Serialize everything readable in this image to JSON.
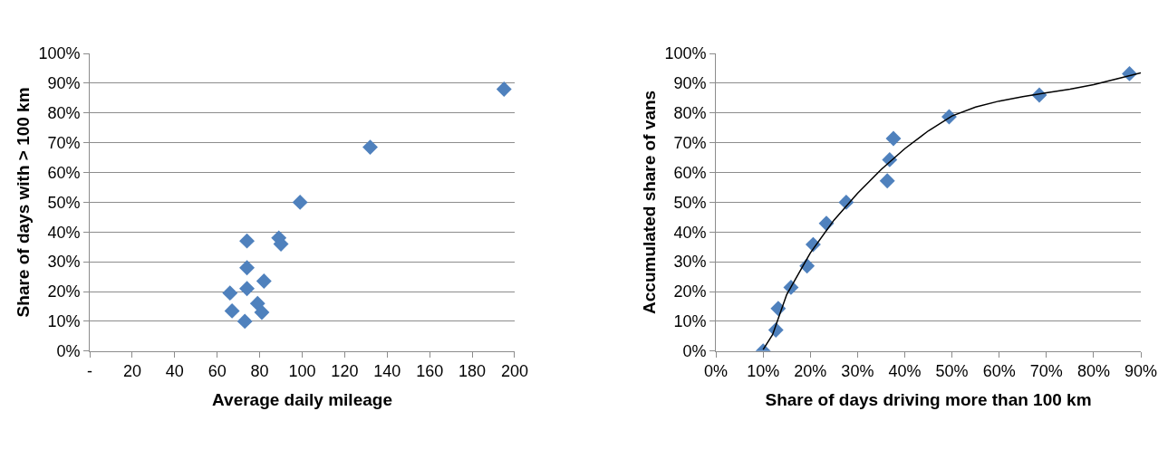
{
  "chart_data": [
    {
      "type": "scatter",
      "xlabel": "Average daily mileage",
      "ylabel": "Share of days with > 100 km",
      "marker": "diamond",
      "grid": "y",
      "xlim": [
        0,
        200
      ],
      "xticks": [
        {
          "value": 0,
          "label": "-"
        },
        20,
        40,
        60,
        80,
        100,
        120,
        140,
        160,
        180,
        200
      ],
      "ylim": [
        0,
        100
      ],
      "yticks": [
        {
          "value": 0,
          "label": "0%"
        },
        {
          "value": 10,
          "label": "10%"
        },
        {
          "value": 20,
          "label": "20%"
        },
        {
          "value": 30,
          "label": "30%"
        },
        {
          "value": 40,
          "label": "40%"
        },
        {
          "value": 50,
          "label": "50%"
        },
        {
          "value": 60,
          "label": "60%"
        },
        {
          "value": 70,
          "label": "70%"
        },
        {
          "value": 80,
          "label": "80%"
        },
        {
          "value": 90,
          "label": "90%"
        },
        {
          "value": 100,
          "label": "100%"
        }
      ],
      "series": [
        {
          "color": "#4f81bd",
          "x": [
            74,
            74,
            82,
            66,
            74,
            79,
            67,
            81,
            73,
            89,
            90,
            99,
            132,
            195
          ],
          "values": [
            37,
            28,
            23.5,
            19.5,
            21,
            16,
            13.5,
            13,
            10,
            38,
            36,
            50,
            68.5,
            88
          ]
        }
      ]
    },
    {
      "type": "scatter",
      "xlabel": "Share of days driving more than 100 km",
      "ylabel": "Accumulated share of vans",
      "marker": "diamond",
      "grid": "y",
      "xlim": [
        0,
        90
      ],
      "xticks": [
        {
          "value": 0,
          "label": "0%"
        },
        {
          "value": 10,
          "label": "10%"
        },
        {
          "value": 20,
          "label": "20%"
        },
        {
          "value": 30,
          "label": "30%"
        },
        {
          "value": 40,
          "label": "40%"
        },
        {
          "value": 50,
          "label": "50%"
        },
        {
          "value": 60,
          "label": "60%"
        },
        {
          "value": 70,
          "label": "70%"
        },
        {
          "value": 80,
          "label": "80%"
        },
        {
          "value": 90,
          "label": "90%"
        }
      ],
      "ylim": [
        0,
        100
      ],
      "yticks": [
        {
          "value": 0,
          "label": "0%"
        },
        {
          "value": 10,
          "label": "10%"
        },
        {
          "value": 20,
          "label": "20%"
        },
        {
          "value": 30,
          "label": "30%"
        },
        {
          "value": 40,
          "label": "40%"
        },
        {
          "value": 50,
          "label": "50%"
        },
        {
          "value": 60,
          "label": "60%"
        },
        {
          "value": 70,
          "label": "70%"
        },
        {
          "value": 80,
          "label": "80%"
        },
        {
          "value": 90,
          "label": "90%"
        },
        {
          "value": 100,
          "label": "100%"
        }
      ],
      "series": [
        {
          "color": "#4f81bd",
          "x": [
            10,
            12.7,
            13.2,
            15.9,
            19.3,
            20.6,
            23.4,
            27.6,
            36.3,
            36.8,
            37.6,
            49.4,
            68.5,
            87.6
          ],
          "values": [
            0,
            7.1,
            14.3,
            21.4,
            28.6,
            35.8,
            42.9,
            50,
            57.2,
            64.3,
            71.4,
            78.7,
            86,
            93.2
          ]
        },
        {
          "type": "line",
          "marker": "none",
          "color": "#000000",
          "x": [
            10,
            12,
            15,
            20,
            25,
            30,
            35,
            40,
            45,
            50,
            55,
            60,
            65,
            70,
            75,
            80,
            85,
            90
          ],
          "values": [
            0.5,
            5.5,
            19,
            33,
            44,
            53,
            61,
            68,
            74,
            79,
            82,
            84,
            85.5,
            86.8,
            88,
            89.5,
            91.5,
            93.5
          ]
        }
      ]
    }
  ]
}
